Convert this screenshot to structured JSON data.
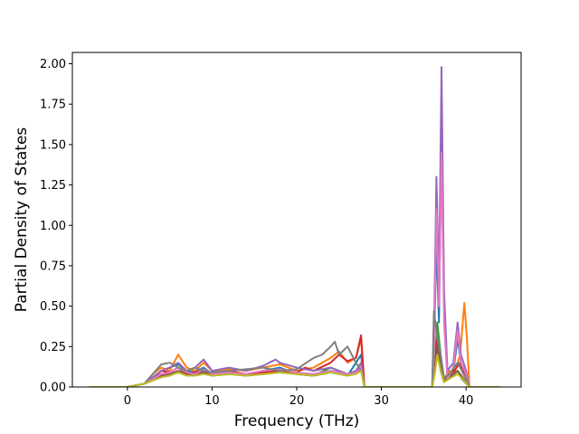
{
  "chart_data": {
    "type": "line",
    "title": "",
    "xlabel": "Frequency (THz)",
    "ylabel": "Partial Density of States",
    "xlim": [
      -6.5,
      46.5
    ],
    "ylim": [
      0.0,
      2.07
    ],
    "xticks": [
      0,
      10,
      20,
      30,
      40
    ],
    "yticks": [
      0.0,
      0.25,
      0.5,
      0.75,
      1.0,
      1.25,
      1.5,
      1.75,
      2.0
    ],
    "xtick_labels": [
      "0",
      "10",
      "20",
      "30",
      "40"
    ],
    "ytick_labels": [
      "0.00",
      "0.25",
      "0.50",
      "0.75",
      "1.00",
      "1.25",
      "1.50",
      "1.75",
      "2.00"
    ],
    "grid": false,
    "legend": "none",
    "series": [
      {
        "color": "#1f77b4",
        "points": [
          [
            -4.5,
            0
          ],
          [
            0,
            0
          ],
          [
            2,
            0.02
          ],
          [
            3,
            0.06
          ],
          [
            4,
            0.1
          ],
          [
            5,
            0.12
          ],
          [
            6,
            0.14
          ],
          [
            7,
            0.1
          ],
          [
            8,
            0.09
          ],
          [
            9,
            0.12
          ],
          [
            10,
            0.08
          ],
          [
            12,
            0.09
          ],
          [
            14,
            0.07
          ],
          [
            16,
            0.1
          ],
          [
            18,
            0.12
          ],
          [
            20,
            0.08
          ],
          [
            22,
            0.07
          ],
          [
            24,
            0.09
          ],
          [
            25,
            0.08
          ],
          [
            26,
            0.07
          ],
          [
            27,
            0.15
          ],
          [
            27.6,
            0.2
          ],
          [
            28,
            0
          ],
          [
            36,
            0
          ],
          [
            36.2,
            0.2
          ],
          [
            36.5,
            0.9
          ],
          [
            36.8,
            0.4
          ],
          [
            37.1,
            1.6
          ],
          [
            37.4,
            0.5
          ],
          [
            37.8,
            0.05
          ],
          [
            38.5,
            0.1
          ],
          [
            39,
            0.3
          ],
          [
            39.4,
            0.15
          ],
          [
            40,
            0.05
          ],
          [
            40.4,
            0
          ],
          [
            44,
            0
          ]
        ]
      },
      {
        "color": "#ff7f0e",
        "points": [
          [
            -4.5,
            0
          ],
          [
            0,
            0
          ],
          [
            2,
            0.02
          ],
          [
            3,
            0.08
          ],
          [
            4,
            0.12
          ],
          [
            5,
            0.1
          ],
          [
            6,
            0.2
          ],
          [
            7,
            0.12
          ],
          [
            8,
            0.1
          ],
          [
            9,
            0.15
          ],
          [
            10,
            0.1
          ],
          [
            12,
            0.11
          ],
          [
            14,
            0.1
          ],
          [
            16,
            0.12
          ],
          [
            18,
            0.14
          ],
          [
            20,
            0.1
          ],
          [
            22,
            0.12
          ],
          [
            24,
            0.18
          ],
          [
            25,
            0.22
          ],
          [
            26,
            0.15
          ],
          [
            27,
            0.18
          ],
          [
            27.6,
            0.3
          ],
          [
            28,
            0
          ],
          [
            36,
            0
          ],
          [
            36.3,
            0.1
          ],
          [
            36.6,
            0.3
          ],
          [
            37,
            0.15
          ],
          [
            37.4,
            0.05
          ],
          [
            38,
            0.1
          ],
          [
            38.6,
            0.08
          ],
          [
            39.3,
            0.2
          ],
          [
            39.8,
            0.52
          ],
          [
            40.1,
            0.3
          ],
          [
            40.4,
            0
          ],
          [
            44,
            0
          ]
        ]
      },
      {
        "color": "#2ca02c",
        "points": [
          [
            -4.5,
            0
          ],
          [
            0,
            0
          ],
          [
            2,
            0.02
          ],
          [
            3,
            0.05
          ],
          [
            4,
            0.08
          ],
          [
            5,
            0.07
          ],
          [
            6,
            0.1
          ],
          [
            7,
            0.08
          ],
          [
            8,
            0.07
          ],
          [
            9,
            0.1
          ],
          [
            10,
            0.08
          ],
          [
            12,
            0.09
          ],
          [
            14,
            0.08
          ],
          [
            16,
            0.09
          ],
          [
            18,
            0.1
          ],
          [
            20,
            0.08
          ],
          [
            22,
            0.07
          ],
          [
            24,
            0.12
          ],
          [
            25,
            0.1
          ],
          [
            26,
            0.08
          ],
          [
            27,
            0.1
          ],
          [
            27.6,
            0.12
          ],
          [
            28,
            0
          ],
          [
            36,
            0
          ],
          [
            36.3,
            0.15
          ],
          [
            36.6,
            0.4
          ],
          [
            37,
            0.2
          ],
          [
            37.4,
            0.05
          ],
          [
            38,
            0.05
          ],
          [
            39,
            0.1
          ],
          [
            39.5,
            0.05
          ],
          [
            40.4,
            0
          ],
          [
            44,
            0
          ]
        ]
      },
      {
        "color": "#d62728",
        "points": [
          [
            -4.5,
            0
          ],
          [
            0,
            0
          ],
          [
            2,
            0.02
          ],
          [
            3,
            0.05
          ],
          [
            4,
            0.1
          ],
          [
            5,
            0.09
          ],
          [
            6,
            0.12
          ],
          [
            7,
            0.08
          ],
          [
            8,
            0.09
          ],
          [
            9,
            0.1
          ],
          [
            10,
            0.08
          ],
          [
            12,
            0.1
          ],
          [
            14,
            0.08
          ],
          [
            16,
            0.09
          ],
          [
            18,
            0.1
          ],
          [
            20,
            0.09
          ],
          [
            21,
            0.12
          ],
          [
            22,
            0.1
          ],
          [
            24,
            0.15
          ],
          [
            25,
            0.2
          ],
          [
            26,
            0.16
          ],
          [
            27,
            0.18
          ],
          [
            27.6,
            0.32
          ],
          [
            28,
            0
          ],
          [
            36,
            0
          ],
          [
            36.3,
            0.1
          ],
          [
            36.6,
            0.3
          ],
          [
            37,
            0.1
          ],
          [
            37.4,
            0.03
          ],
          [
            38,
            0.08
          ],
          [
            38.6,
            0.1
          ],
          [
            39.3,
            0.15
          ],
          [
            40,
            0.05
          ],
          [
            40.4,
            0
          ],
          [
            44,
            0
          ]
        ]
      },
      {
        "color": "#9467bd",
        "points": [
          [
            -4.5,
            0
          ],
          [
            0,
            0
          ],
          [
            2,
            0.02
          ],
          [
            3,
            0.06
          ],
          [
            4,
            0.1
          ],
          [
            5,
            0.12
          ],
          [
            6,
            0.15
          ],
          [
            7,
            0.1
          ],
          [
            8,
            0.12
          ],
          [
            9,
            0.17
          ],
          [
            10,
            0.1
          ],
          [
            12,
            0.12
          ],
          [
            14,
            0.1
          ],
          [
            16,
            0.13
          ],
          [
            17.5,
            0.17
          ],
          [
            18,
            0.15
          ],
          [
            20,
            0.12
          ],
          [
            22,
            0.1
          ],
          [
            24,
            0.12
          ],
          [
            25,
            0.1
          ],
          [
            26,
            0.08
          ],
          [
            27,
            0.1
          ],
          [
            27.6,
            0.15
          ],
          [
            28,
            0
          ],
          [
            36,
            0
          ],
          [
            36.2,
            0.3
          ],
          [
            36.5,
            1.3
          ],
          [
            36.8,
            0.6
          ],
          [
            37.1,
            1.98
          ],
          [
            37.4,
            0.6
          ],
          [
            37.8,
            0.1
          ],
          [
            38.5,
            0.15
          ],
          [
            39,
            0.4
          ],
          [
            39.4,
            0.2
          ],
          [
            40,
            0.1
          ],
          [
            40.4,
            0
          ],
          [
            44,
            0
          ]
        ]
      },
      {
        "color": "#8c564b",
        "points": [
          [
            -4.5,
            0
          ],
          [
            0,
            0
          ],
          [
            2,
            0.02
          ],
          [
            3,
            0.04
          ],
          [
            4,
            0.07
          ],
          [
            5,
            0.08
          ],
          [
            6,
            0.1
          ],
          [
            7,
            0.07
          ],
          [
            8,
            0.08
          ],
          [
            9,
            0.09
          ],
          [
            10,
            0.07
          ],
          [
            12,
            0.08
          ],
          [
            14,
            0.07
          ],
          [
            16,
            0.08
          ],
          [
            18,
            0.09
          ],
          [
            20,
            0.08
          ],
          [
            22,
            0.07
          ],
          [
            24,
            0.1
          ],
          [
            25,
            0.09
          ],
          [
            26,
            0.08
          ],
          [
            27,
            0.09
          ],
          [
            27.6,
            0.11
          ],
          [
            28,
            0
          ],
          [
            36,
            0
          ],
          [
            36.3,
            0.1
          ],
          [
            36.6,
            0.25
          ],
          [
            37,
            0.12
          ],
          [
            37.4,
            0.04
          ],
          [
            38,
            0.06
          ],
          [
            39,
            0.1
          ],
          [
            39.6,
            0.06
          ],
          [
            40.4,
            0
          ],
          [
            44,
            0
          ]
        ]
      },
      {
        "color": "#e377c2",
        "points": [
          [
            -4.5,
            0
          ],
          [
            0,
            0
          ],
          [
            2,
            0.02
          ],
          [
            3,
            0.05
          ],
          [
            4,
            0.08
          ],
          [
            5,
            0.09
          ],
          [
            6,
            0.12
          ],
          [
            7,
            0.09
          ],
          [
            8,
            0.08
          ],
          [
            9,
            0.11
          ],
          [
            10,
            0.08
          ],
          [
            12,
            0.09
          ],
          [
            14,
            0.08
          ],
          [
            16,
            0.1
          ],
          [
            18,
            0.11
          ],
          [
            20,
            0.09
          ],
          [
            22,
            0.08
          ],
          [
            24,
            0.1
          ],
          [
            25,
            0.09
          ],
          [
            26,
            0.08
          ],
          [
            27,
            0.09
          ],
          [
            27.6,
            0.12
          ],
          [
            28,
            0
          ],
          [
            36,
            0
          ],
          [
            36.2,
            0.2
          ],
          [
            36.5,
            1.1
          ],
          [
            36.8,
            0.5
          ],
          [
            37.1,
            1.45
          ],
          [
            37.4,
            0.4
          ],
          [
            37.8,
            0.05
          ],
          [
            38.5,
            0.12
          ],
          [
            39,
            0.35
          ],
          [
            39.4,
            0.15
          ],
          [
            40,
            0.08
          ],
          [
            40.4,
            0
          ],
          [
            44,
            0
          ]
        ]
      },
      {
        "color": "#7f7f7f",
        "points": [
          [
            -4.5,
            0
          ],
          [
            0,
            0
          ],
          [
            2,
            0.02
          ],
          [
            3,
            0.08
          ],
          [
            4,
            0.14
          ],
          [
            5,
            0.15
          ],
          [
            6,
            0.12
          ],
          [
            7,
            0.1
          ],
          [
            8,
            0.12
          ],
          [
            9,
            0.1
          ],
          [
            10,
            0.09
          ],
          [
            12,
            0.1
          ],
          [
            14,
            0.11
          ],
          [
            16,
            0.12
          ],
          [
            18,
            0.1
          ],
          [
            20,
            0.11
          ],
          [
            22,
            0.18
          ],
          [
            23,
            0.2
          ],
          [
            24,
            0.25
          ],
          [
            24.5,
            0.28
          ],
          [
            25,
            0.2
          ],
          [
            26,
            0.25
          ],
          [
            27,
            0.15
          ],
          [
            27.6,
            0.1
          ],
          [
            28,
            0
          ],
          [
            36,
            0
          ],
          [
            36.2,
            0.47
          ],
          [
            36.6,
            0.3
          ],
          [
            37,
            0.2
          ],
          [
            37.4,
            0.05
          ],
          [
            38,
            0.08
          ],
          [
            39,
            0.15
          ],
          [
            40,
            0.05
          ],
          [
            40.4,
            0
          ],
          [
            44,
            0
          ]
        ]
      },
      {
        "color": "#bcbd22",
        "points": [
          [
            -4.5,
            0
          ],
          [
            0,
            0
          ],
          [
            2,
            0.02
          ],
          [
            3,
            0.04
          ],
          [
            4,
            0.06
          ],
          [
            5,
            0.07
          ],
          [
            6,
            0.09
          ],
          [
            7,
            0.07
          ],
          [
            8,
            0.07
          ],
          [
            9,
            0.08
          ],
          [
            10,
            0.07
          ],
          [
            12,
            0.08
          ],
          [
            14,
            0.07
          ],
          [
            16,
            0.08
          ],
          [
            18,
            0.09
          ],
          [
            20,
            0.08
          ],
          [
            22,
            0.07
          ],
          [
            24,
            0.09
          ],
          [
            25,
            0.08
          ],
          [
            26,
            0.07
          ],
          [
            27,
            0.08
          ],
          [
            27.6,
            0.1
          ],
          [
            28,
            0
          ],
          [
            36,
            0
          ],
          [
            36.3,
            0.08
          ],
          [
            36.6,
            0.2
          ],
          [
            37,
            0.1
          ],
          [
            37.4,
            0.03
          ],
          [
            38,
            0.05
          ],
          [
            39,
            0.08
          ],
          [
            39.6,
            0.05
          ],
          [
            40.4,
            0
          ],
          [
            44,
            0
          ]
        ]
      }
    ]
  }
}
